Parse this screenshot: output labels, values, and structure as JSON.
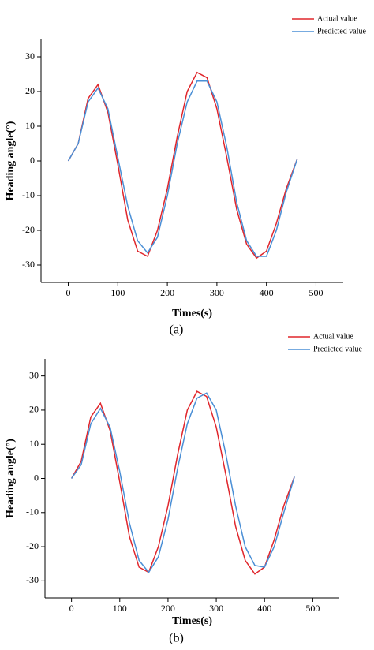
{
  "chart_data": [
    {
      "type": "line",
      "caption": "(a)",
      "xlabel": "Times(s)",
      "ylabel": "Heading angle(°)",
      "x": [
        0,
        20,
        40,
        60,
        80,
        100,
        120,
        140,
        160,
        180,
        200,
        220,
        240,
        260,
        280,
        300,
        320,
        340,
        360,
        380,
        400,
        420,
        440,
        462
      ],
      "series": [
        {
          "name": "Actual value",
          "color": "#e0262c",
          "values": [
            0,
            5,
            18,
            22,
            14,
            -1,
            -17,
            -26,
            -27.5,
            -20,
            -8,
            7,
            20,
            25.5,
            24,
            15,
            1,
            -14,
            -24,
            -28,
            -26,
            -18,
            -8,
            0.5
          ]
        },
        {
          "name": "Predicted value",
          "color": "#4a8fd6",
          "values": [
            0,
            5,
            17,
            21,
            15,
            1,
            -13,
            -23,
            -26.5,
            -22,
            -10,
            5,
            17,
            23,
            23,
            17,
            4,
            -12,
            -23,
            -27.5,
            -27.5,
            -20,
            -9,
            0.5
          ]
        }
      ],
      "xlim": [
        -55,
        555
      ],
      "xticks": [
        0,
        100,
        200,
        300,
        400,
        500
      ],
      "ylim": [
        -35,
        35
      ],
      "yticks": [
        -30,
        -20,
        -10,
        0,
        10,
        20,
        30
      ],
      "grid": false,
      "legend": "top-right"
    },
    {
      "type": "line",
      "caption": "(b)",
      "xlabel": "Times(s)",
      "ylabel": "Heading angle(°)",
      "x": [
        0,
        20,
        40,
        60,
        80,
        100,
        120,
        140,
        160,
        180,
        200,
        220,
        240,
        260,
        280,
        300,
        320,
        340,
        360,
        380,
        400,
        420,
        440,
        462
      ],
      "series": [
        {
          "name": "Actual value",
          "color": "#e0262c",
          "values": [
            0,
            5,
            18,
            22,
            14,
            -1,
            -17,
            -26,
            -27.5,
            -20,
            -8,
            7,
            20,
            25.5,
            24,
            15,
            1,
            -14,
            -24,
            -28,
            -26,
            -18,
            -8,
            0.5
          ]
        },
        {
          "name": "Predicted value",
          "color": "#4a8fd6",
          "values": [
            0,
            4,
            16,
            20.5,
            15,
            2,
            -13,
            -24,
            -27.5,
            -23,
            -12,
            3,
            16,
            23.5,
            25,
            20,
            7,
            -8,
            -20,
            -25.5,
            -26,
            -20,
            -10,
            0.5
          ]
        }
      ],
      "xlim": [
        -55,
        555
      ],
      "xticks": [
        0,
        100,
        200,
        300,
        400,
        500
      ],
      "ylim": [
        -35,
        35
      ],
      "yticks": [
        -30,
        -20,
        -10,
        0,
        10,
        20,
        30
      ],
      "grid": false,
      "legend": "top-right"
    }
  ]
}
